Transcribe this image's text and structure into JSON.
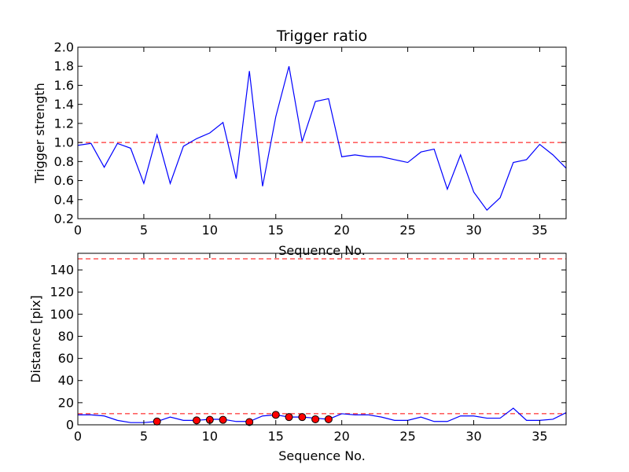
{
  "colors": {
    "line": "#0000ff",
    "reference": "#ff0000",
    "marker": "#ff0000",
    "axes": "#000000",
    "background": "#ffffff"
  },
  "chart_data": [
    {
      "type": "line",
      "title": "Trigger ratio",
      "xlabel": "Sequence No.",
      "ylabel": "Trigger strength",
      "xlim": [
        0,
        37
      ],
      "ylim": [
        0.2,
        2.0
      ],
      "xticks": [
        "0",
        "5",
        "10",
        "15",
        "20",
        "25",
        "30",
        "35"
      ],
      "yticks": [
        "0.2",
        "0.4",
        "0.6",
        "0.8",
        "1.0",
        "1.2",
        "1.4",
        "1.6",
        "1.8",
        "2.0"
      ],
      "grid": false,
      "series": [
        {
          "x": [
            0,
            1,
            2,
            3,
            4,
            5,
            6,
            7,
            8,
            9,
            10,
            11,
            12,
            13,
            14,
            15,
            16,
            17,
            18,
            19,
            20,
            21,
            22,
            23,
            24,
            25,
            26,
            27,
            28,
            29,
            30,
            31,
            32,
            33,
            34,
            35,
            36,
            37
          ],
          "values": [
            0.97,
            0.99,
            0.74,
            0.99,
            0.94,
            0.57,
            1.08,
            0.57,
            0.96,
            1.04,
            1.1,
            1.21,
            0.62,
            1.75,
            0.54,
            1.27,
            1.8,
            1.01,
            1.43,
            1.46,
            0.85,
            0.87,
            0.85,
            0.85,
            0.82,
            0.79,
            0.9,
            0.93,
            0.51,
            0.87,
            0.48,
            0.29,
            0.42,
            0.79,
            0.82,
            0.98,
            0.87,
            0.73
          ]
        }
      ],
      "reference_line": {
        "y": 1.0,
        "style": "dashed"
      }
    },
    {
      "type": "line",
      "title": "",
      "xlabel": "Sequence No.",
      "ylabel": "Distance [pix]",
      "xlim": [
        0,
        37
      ],
      "ylim": [
        0,
        155
      ],
      "xticks": [
        "0",
        "5",
        "10",
        "15",
        "20",
        "25",
        "30",
        "35"
      ],
      "yticks": [
        "0",
        "20",
        "40",
        "60",
        "80",
        "100",
        "120",
        "140"
      ],
      "grid": false,
      "series": [
        {
          "x": [
            0,
            1,
            2,
            3,
            4,
            5,
            6,
            7,
            8,
            9,
            10,
            11,
            12,
            13,
            14,
            15,
            16,
            17,
            18,
            19,
            20,
            21,
            22,
            23,
            24,
            25,
            26,
            27,
            28,
            29,
            30,
            31,
            32,
            33,
            34,
            35,
            36,
            37
          ],
          "values": [
            9,
            9,
            8,
            4,
            2,
            2,
            3,
            7,
            4,
            4,
            5,
            5,
            3,
            3,
            8,
            9,
            7,
            7,
            6,
            5,
            10,
            9,
            9,
            7,
            4,
            4,
            7,
            3,
            3,
            8,
            8,
            6,
            6,
            15,
            4,
            4,
            5,
            11
          ]
        }
      ],
      "markers": {
        "x": [
          6,
          9,
          10,
          11,
          13,
          15,
          16,
          17,
          18,
          19
        ],
        "values": [
          3,
          4,
          4.5,
          4.5,
          2.5,
          9,
          7,
          7,
          5,
          5
        ]
      },
      "reference_lines": [
        {
          "y": 150,
          "style": "dashed"
        },
        {
          "y": 10,
          "style": "dashed"
        }
      ]
    }
  ]
}
